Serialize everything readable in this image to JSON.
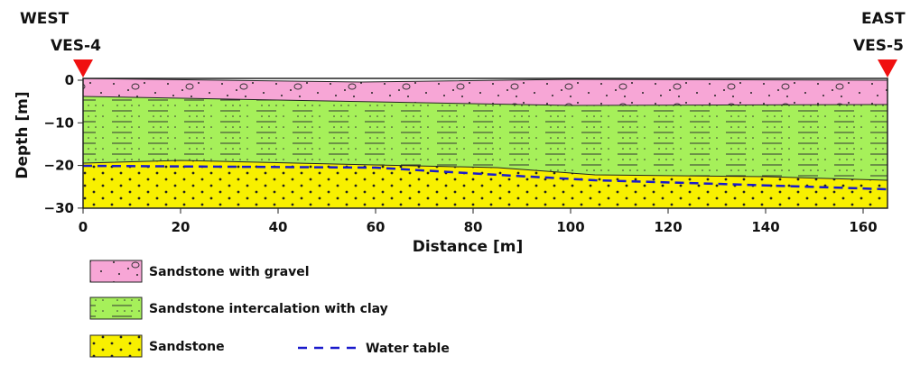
{
  "labels": {
    "west": "WEST",
    "ves_left": "VES-4",
    "east": "EAST",
    "ves_right": "VES-5"
  },
  "axes": {
    "y_title": "Depth [m]",
    "x_title": "Distance [m]",
    "y_ticks": [
      "0",
      "−10",
      "−20",
      "−30"
    ],
    "x_ticks": [
      "0",
      "20",
      "40",
      "60",
      "80",
      "100",
      "120",
      "140",
      "160"
    ]
  },
  "legend": [
    {
      "label": "Sandstone with gravel"
    },
    {
      "label": "Sandstone intercalation with clay"
    },
    {
      "label": "Sandstone"
    },
    {
      "label": "Water table"
    }
  ]
}
